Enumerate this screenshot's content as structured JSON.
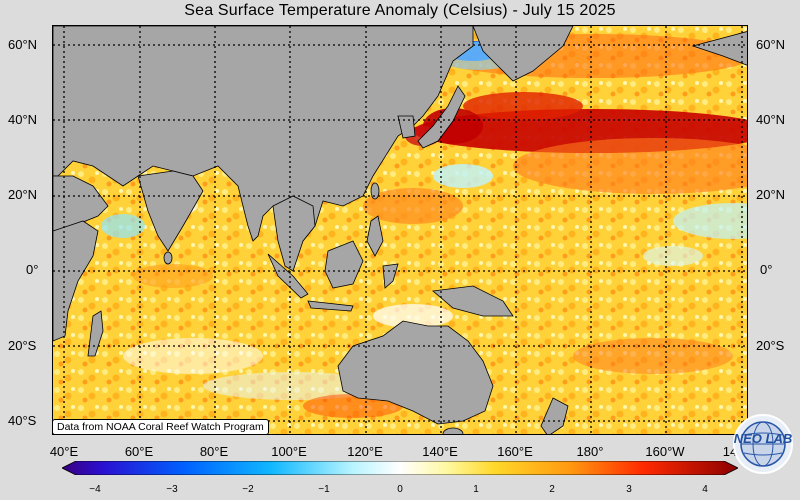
{
  "title": "Sea Surface Temperature Anomaly (Celsius) - July 15 2025",
  "latitude_labels_left": [
    "60°N",
    "40°N",
    "20°N",
    "0°",
    "20°S",
    "40°S"
  ],
  "latitude_labels_right": [
    "60°N",
    "40°N",
    "20°N",
    "0°",
    "20°S"
  ],
  "longitude_labels": [
    "40°E",
    "60°E",
    "80°E",
    "100°E",
    "120°E",
    "140°E",
    "160°E",
    "180°",
    "160°W",
    "14"
  ],
  "credit": "Data from NOAA Coral Reef Watch Program",
  "colorbar": {
    "ticks": [
      "−4",
      "−3",
      "−2",
      "−1",
      "0",
      "1",
      "2",
      "3",
      "4"
    ],
    "min": -4,
    "max": 4
  },
  "logo_text": "NEO LAB",
  "colors": {
    "land": "#a6a6a6",
    "ocean_base": "#ffd23a",
    "strong_warm": "#b30000",
    "cool": "#8fe6ff"
  }
}
